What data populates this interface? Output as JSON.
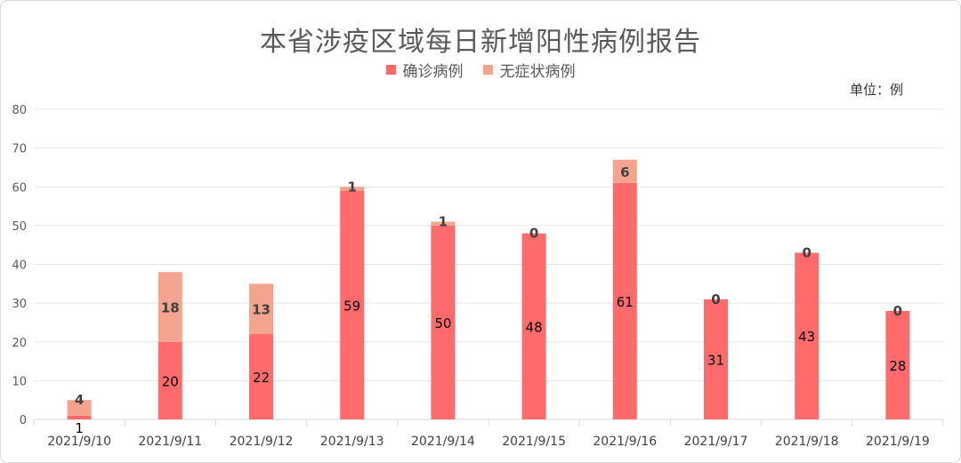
{
  "chart_data": {
    "type": "bar",
    "stacked": true,
    "title": "本省涉疫区域每日新增阳性病例报告",
    "unit_label": "单位：例",
    "categories": [
      "2021/9/10",
      "2021/9/11",
      "2021/9/12",
      "2021/9/13",
      "2021/9/14",
      "2021/9/15",
      "2021/9/16",
      "2021/9/17",
      "2021/9/18",
      "2021/9/19"
    ],
    "series": [
      {
        "name": "确诊病例",
        "values": [
          1,
          20,
          22,
          59,
          50,
          48,
          61,
          31,
          43,
          28
        ],
        "color": "#ff6b6b"
      },
      {
        "name": "无症状病例",
        "values": [
          4,
          18,
          13,
          1,
          1,
          0,
          6,
          0,
          0,
          0
        ],
        "color": "#f4a48c"
      }
    ],
    "ylim": [
      0,
      80
    ],
    "yticks": [
      0,
      10,
      20,
      30,
      40,
      50,
      60,
      70,
      80
    ],
    "grid": true,
    "legend_position": "top-center"
  },
  "colors": {
    "title_text": "#595959",
    "grid": "#e6e6e6",
    "axis": "#d9d9d9"
  }
}
